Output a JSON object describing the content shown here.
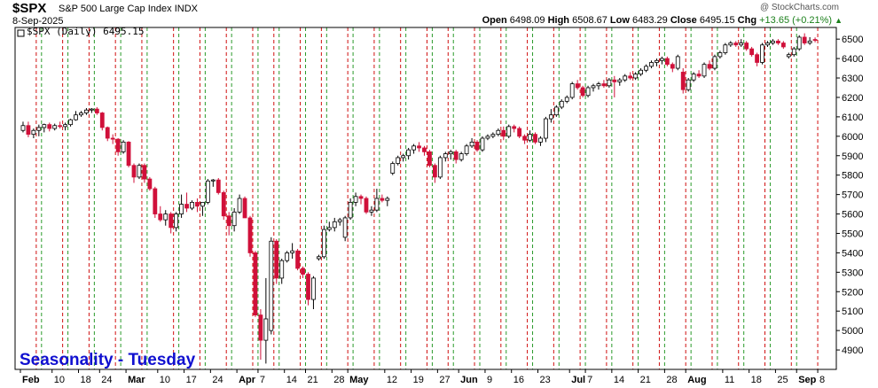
{
  "header": {
    "symbol": "$SPX",
    "name": "S&P 500 Large Cap Index",
    "exchange": "INDX",
    "date": "8-Sep-2025",
    "credit": "@ StockCharts.com",
    "open_label": "Open",
    "open": "6498.09",
    "high_label": "High",
    "high": "6508.67",
    "low_label": "Low",
    "low": "6483.29",
    "close_label": "Close",
    "close": "6495.15",
    "chg_label": "Chg",
    "chg": "+13.65 (+0.21%)"
  },
  "colors": {
    "up": "#000000",
    "down": "#d0103a",
    "green_line": "#2a9a2a",
    "red_line": "#d01010",
    "annotation": "#1010d0"
  },
  "chart_data": {
    "type": "candlestick",
    "legend": "$SPX (Daily) 6495.15",
    "annotation": "Seasonality - Tuesday",
    "ylim": [
      4800,
      6560
    ],
    "y_ticks": [
      4900,
      5000,
      5100,
      5200,
      5300,
      5400,
      5500,
      5600,
      5700,
      5800,
      5900,
      6000,
      6100,
      6200,
      6300,
      6400,
      6500
    ],
    "x_ticks": [
      {
        "label": "Feb",
        "day": 0,
        "month": true
      },
      {
        "label": "10",
        "day": 6
      },
      {
        "label": "18",
        "day": 11
      },
      {
        "label": "24",
        "day": 15
      },
      {
        "label": "Mar",
        "day": 20,
        "month": true
      },
      {
        "label": "10",
        "day": 26
      },
      {
        "label": "17",
        "day": 31
      },
      {
        "label": "24",
        "day": 36
      },
      {
        "label": "Apr",
        "day": 41,
        "month": true
      },
      {
        "label": "7",
        "day": 45
      },
      {
        "label": "14",
        "day": 50
      },
      {
        "label": "21",
        "day": 54
      },
      {
        "label": "28",
        "day": 59
      },
      {
        "label": "May",
        "day": 62,
        "month": true
      },
      {
        "label": "12",
        "day": 69
      },
      {
        "label": "19",
        "day": 74
      },
      {
        "label": "27",
        "day": 79
      },
      {
        "label": "Jun",
        "day": 83,
        "month": true
      },
      {
        "label": "9",
        "day": 88
      },
      {
        "label": "16",
        "day": 93
      },
      {
        "label": "23",
        "day": 98
      },
      {
        "label": "Jul",
        "day": 104,
        "month": true
      },
      {
        "label": "7",
        "day": 107
      },
      {
        "label": "14",
        "day": 112
      },
      {
        "label": "21",
        "day": 117
      },
      {
        "label": "28",
        "day": 122
      },
      {
        "label": "Aug",
        "day": 126,
        "month": true
      },
      {
        "label": "11",
        "day": 133
      },
      {
        "label": "18",
        "day": 138
      },
      {
        "label": "25",
        "day": 143
      },
      {
        "label": "Sep",
        "day": 147,
        "month": true
      },
      {
        "label": "8",
        "day": 151
      }
    ],
    "x_start": 0,
    "x_end": 152,
    "green_lines": [
      4,
      9,
      14,
      19,
      24,
      30,
      35,
      40,
      45,
      49,
      54,
      58,
      63,
      68,
      73,
      78,
      82,
      87,
      92,
      97,
      102,
      107,
      112,
      117,
      122,
      127,
      132,
      137,
      142,
      147
    ],
    "red_lines": [
      3,
      8,
      13,
      18,
      23,
      29,
      34,
      39,
      44,
      48,
      53,
      57,
      62,
      67,
      72,
      77,
      81,
      86,
      91,
      96,
      101,
      106,
      111,
      116,
      121,
      126,
      131,
      136,
      141,
      146,
      151
    ],
    "candles": [
      {
        "o": 6030,
        "h": 6075,
        "l": 6020,
        "c": 6055
      },
      {
        "o": 6055,
        "h": 6075,
        "l": 5995,
        "c": 6010
      },
      {
        "o": 6010,
        "h": 6040,
        "l": 5990,
        "c": 6030
      },
      {
        "o": 6030,
        "h": 6060,
        "l": 6000,
        "c": 6045
      },
      {
        "o": 6045,
        "h": 6065,
        "l": 6020,
        "c": 6060
      },
      {
        "o": 6060,
        "h": 6070,
        "l": 6025,
        "c": 6040
      },
      {
        "o": 6040,
        "h": 6065,
        "l": 6030,
        "c": 6055
      },
      {
        "o": 6055,
        "h": 6075,
        "l": 6040,
        "c": 6050
      },
      {
        "o": 6050,
        "h": 6070,
        "l": 6030,
        "c": 6060
      },
      {
        "o": 6060,
        "h": 6090,
        "l": 6050,
        "c": 6085
      },
      {
        "o": 6085,
        "h": 6130,
        "l": 6080,
        "c": 6110
      },
      {
        "o": 6110,
        "h": 6130,
        "l": 6100,
        "c": 6120
      },
      {
        "o": 6120,
        "h": 6145,
        "l": 6110,
        "c": 6135
      },
      {
        "o": 6135,
        "h": 6145,
        "l": 6120,
        "c": 6140
      },
      {
        "o": 6140,
        "h": 6150,
        "l": 6110,
        "c": 6120
      },
      {
        "o": 6120,
        "h": 6125,
        "l": 6030,
        "c": 6045
      },
      {
        "o": 6045,
        "h": 6050,
        "l": 5975,
        "c": 5990
      },
      {
        "o": 5990,
        "h": 6010,
        "l": 5960,
        "c": 5985
      },
      {
        "o": 5985,
        "h": 5990,
        "l": 5900,
        "c": 5920
      },
      {
        "o": 5920,
        "h": 5980,
        "l": 5910,
        "c": 5970
      },
      {
        "o": 5970,
        "h": 5975,
        "l": 5840,
        "c": 5850
      },
      {
        "o": 5850,
        "h": 5860,
        "l": 5760,
        "c": 5790
      },
      {
        "o": 5790,
        "h": 5860,
        "l": 5780,
        "c": 5850
      },
      {
        "o": 5850,
        "h": 5860,
        "l": 5760,
        "c": 5780
      },
      {
        "o": 5780,
        "h": 5790,
        "l": 5720,
        "c": 5730
      },
      {
        "o": 5730,
        "h": 5740,
        "l": 5580,
        "c": 5600
      },
      {
        "o": 5600,
        "h": 5640,
        "l": 5560,
        "c": 5570
      },
      {
        "o": 5570,
        "h": 5620,
        "l": 5540,
        "c": 5600
      },
      {
        "o": 5600,
        "h": 5610,
        "l": 5500,
        "c": 5530
      },
      {
        "o": 5530,
        "h": 5610,
        "l": 5510,
        "c": 5600
      },
      {
        "o": 5600,
        "h": 5700,
        "l": 5580,
        "c": 5650
      },
      {
        "o": 5650,
        "h": 5710,
        "l": 5610,
        "c": 5630
      },
      {
        "o": 5630,
        "h": 5670,
        "l": 5620,
        "c": 5660
      },
      {
        "o": 5660,
        "h": 5680,
        "l": 5610,
        "c": 5640
      },
      {
        "o": 5640,
        "h": 5660,
        "l": 5590,
        "c": 5660
      },
      {
        "o": 5660,
        "h": 5780,
        "l": 5650,
        "c": 5770
      },
      {
        "o": 5770,
        "h": 5780,
        "l": 5740,
        "c": 5775
      },
      {
        "o": 5775,
        "h": 5785,
        "l": 5700,
        "c": 5710
      },
      {
        "o": 5710,
        "h": 5720,
        "l": 5570,
        "c": 5590
      },
      {
        "o": 5590,
        "h": 5610,
        "l": 5490,
        "c": 5540
      },
      {
        "o": 5540,
        "h": 5630,
        "l": 5510,
        "c": 5610
      },
      {
        "o": 5610,
        "h": 5700,
        "l": 5600,
        "c": 5680
      },
      {
        "o": 5680,
        "h": 5690,
        "l": 5580,
        "c": 5580
      },
      {
        "o": 5580,
        "h": 5590,
        "l": 5380,
        "c": 5400
      },
      {
        "o": 5400,
        "h": 5410,
        "l": 5070,
        "c": 5080
      },
      {
        "o": 5080,
        "h": 5110,
        "l": 4850,
        "c": 4950
      },
      {
        "o": 4950,
        "h": 5270,
        "l": 4830,
        "c": 5060
      },
      {
        "o": 5000,
        "h": 5480,
        "l": 4980,
        "c": 5460
      },
      {
        "o": 5460,
        "h": 5470,
        "l": 5240,
        "c": 5270
      },
      {
        "o": 5270,
        "h": 5370,
        "l": 5240,
        "c": 5360
      },
      {
        "o": 5360,
        "h": 5410,
        "l": 5350,
        "c": 5400
      },
      {
        "o": 5400,
        "h": 5450,
        "l": 5370,
        "c": 5410
      },
      {
        "o": 5410,
        "h": 5420,
        "l": 5310,
        "c": 5320
      },
      {
        "o": 5320,
        "h": 5330,
        "l": 5270,
        "c": 5290
      },
      {
        "o": 5290,
        "h": 5300,
        "l": 5130,
        "c": 5160
      },
      {
        "o": 5160,
        "h": 5280,
        "l": 5110,
        "c": 5270
      },
      {
        "o": 5370,
        "h": 5390,
        "l": 5360,
        "c": 5380
      },
      {
        "o": 5380,
        "h": 5540,
        "l": 5370,
        "c": 5520
      },
      {
        "o": 5520,
        "h": 5560,
        "l": 5510,
        "c": 5530
      },
      {
        "o": 5530,
        "h": 5580,
        "l": 5510,
        "c": 5560
      },
      {
        "o": 5560,
        "h": 5580,
        "l": 5540,
        "c": 5570
      },
      {
        "o": 5480,
        "h": 5590,
        "l": 5460,
        "c": 5580
      },
      {
        "o": 5580,
        "h": 5680,
        "l": 5570,
        "c": 5660
      },
      {
        "o": 5660,
        "h": 5710,
        "l": 5640,
        "c": 5690
      },
      {
        "o": 5690,
        "h": 5700,
        "l": 5650,
        "c": 5680
      },
      {
        "o": 5680,
        "h": 5690,
        "l": 5600,
        "c": 5610
      },
      {
        "o": 5610,
        "h": 5640,
        "l": 5590,
        "c": 5620
      },
      {
        "o": 5620,
        "h": 5730,
        "l": 5610,
        "c": 5680
      },
      {
        "o": 5680,
        "h": 5700,
        "l": 5660,
        "c": 5670
      },
      {
        "o": 5670,
        "h": 5690,
        "l": 5640,
        "c": 5680
      },
      {
        "o": 5810,
        "h": 5870,
        "l": 5800,
        "c": 5860
      },
      {
        "o": 5860,
        "h": 5900,
        "l": 5850,
        "c": 5890
      },
      {
        "o": 5890,
        "h": 5910,
        "l": 5870,
        "c": 5900
      },
      {
        "o": 5900,
        "h": 5940,
        "l": 5880,
        "c": 5930
      },
      {
        "o": 5930,
        "h": 5960,
        "l": 5910,
        "c": 5950
      },
      {
        "o": 5950,
        "h": 5970,
        "l": 5920,
        "c": 5940
      },
      {
        "o": 5940,
        "h": 5950,
        "l": 5900,
        "c": 5920
      },
      {
        "o": 5920,
        "h": 5930,
        "l": 5840,
        "c": 5850
      },
      {
        "o": 5850,
        "h": 5860,
        "l": 5760,
        "c": 5790
      },
      {
        "o": 5790,
        "h": 5900,
        "l": 5780,
        "c": 5890
      },
      {
        "o": 5890,
        "h": 5920,
        "l": 5870,
        "c": 5910
      },
      {
        "o": 5910,
        "h": 5930,
        "l": 5880,
        "c": 5920
      },
      {
        "o": 5920,
        "h": 5930,
        "l": 5860,
        "c": 5880
      },
      {
        "o": 5880,
        "h": 5920,
        "l": 5870,
        "c": 5910
      },
      {
        "o": 5910,
        "h": 5960,
        "l": 5900,
        "c": 5950
      },
      {
        "o": 5950,
        "h": 5990,
        "l": 5940,
        "c": 5970
      },
      {
        "o": 5970,
        "h": 5980,
        "l": 5920,
        "c": 5930
      },
      {
        "o": 5930,
        "h": 6000,
        "l": 5920,
        "c": 5990
      },
      {
        "o": 5990,
        "h": 6010,
        "l": 5980,
        "c": 6000
      },
      {
        "o": 6000,
        "h": 6020,
        "l": 5990,
        "c": 6010
      },
      {
        "o": 6010,
        "h": 6040,
        "l": 6000,
        "c": 6030
      },
      {
        "o": 6030,
        "h": 6050,
        "l": 5980,
        "c": 6000
      },
      {
        "o": 6000,
        "h": 6060,
        "l": 5990,
        "c": 6050
      },
      {
        "o": 6050,
        "h": 6060,
        "l": 6020,
        "c": 6040
      },
      {
        "o": 6040,
        "h": 6050,
        "l": 5990,
        "c": 6000
      },
      {
        "o": 6000,
        "h": 6010,
        "l": 5960,
        "c": 5980
      },
      {
        "o": 5980,
        "h": 6030,
        "l": 5970,
        "c": 6010
      },
      {
        "o": 6010,
        "h": 6020,
        "l": 5960,
        "c": 5970
      },
      {
        "o": 5970,
        "h": 6000,
        "l": 5950,
        "c": 5990
      },
      {
        "o": 5990,
        "h": 6100,
        "l": 5970,
        "c": 6090
      },
      {
        "o": 6090,
        "h": 6140,
        "l": 6070,
        "c": 6110
      },
      {
        "o": 6110,
        "h": 6160,
        "l": 6100,
        "c": 6150
      },
      {
        "o": 6150,
        "h": 6190,
        "l": 6140,
        "c": 6180
      },
      {
        "o": 6180,
        "h": 6210,
        "l": 6170,
        "c": 6200
      },
      {
        "o": 6200,
        "h": 6280,
        "l": 6190,
        "c": 6270
      },
      {
        "o": 6270,
        "h": 6290,
        "l": 6240,
        "c": 6250
      },
      {
        "o": 6250,
        "h": 6260,
        "l": 6200,
        "c": 6210
      },
      {
        "o": 6210,
        "h": 6260,
        "l": 6200,
        "c": 6250
      },
      {
        "o": 6250,
        "h": 6270,
        "l": 6230,
        "c": 6260
      },
      {
        "o": 6260,
        "h": 6280,
        "l": 6240,
        "c": 6270
      },
      {
        "o": 6270,
        "h": 6290,
        "l": 6250,
        "c": 6260
      },
      {
        "o": 6260,
        "h": 6300,
        "l": 6250,
        "c": 6290
      },
      {
        "o": 6290,
        "h": 6310,
        "l": 6200,
        "c": 6280
      },
      {
        "o": 6280,
        "h": 6300,
        "l": 6260,
        "c": 6290
      },
      {
        "o": 6290,
        "h": 6320,
        "l": 6280,
        "c": 6310
      },
      {
        "o": 6310,
        "h": 6330,
        "l": 6290,
        "c": 6300
      },
      {
        "o": 6300,
        "h": 6330,
        "l": 6290,
        "c": 6320
      },
      {
        "o": 6320,
        "h": 6350,
        "l": 6310,
        "c": 6340
      },
      {
        "o": 6340,
        "h": 6370,
        "l": 6330,
        "c": 6360
      },
      {
        "o": 6360,
        "h": 6390,
        "l": 6350,
        "c": 6380
      },
      {
        "o": 6380,
        "h": 6400,
        "l": 6360,
        "c": 6390
      },
      {
        "o": 6390,
        "h": 6410,
        "l": 6370,
        "c": 6400
      },
      {
        "o": 6400,
        "h": 6410,
        "l": 6360,
        "c": 6370
      },
      {
        "o": 6370,
        "h": 6380,
        "l": 6330,
        "c": 6350
      },
      {
        "o": 6350,
        "h": 6420,
        "l": 6340,
        "c": 6410
      },
      {
        "o": 6330,
        "h": 6350,
        "l": 6220,
        "c": 6240
      },
      {
        "o": 6240,
        "h": 6300,
        "l": 6230,
        "c": 6290
      },
      {
        "o": 6290,
        "h": 6330,
        "l": 6280,
        "c": 6320
      },
      {
        "o": 6320,
        "h": 6340,
        "l": 6300,
        "c": 6310
      },
      {
        "o": 6310,
        "h": 6380,
        "l": 6300,
        "c": 6370
      },
      {
        "o": 6370,
        "h": 6390,
        "l": 6340,
        "c": 6350
      },
      {
        "o": 6350,
        "h": 6420,
        "l": 6340,
        "c": 6410
      },
      {
        "o": 6410,
        "h": 6440,
        "l": 6400,
        "c": 6430
      },
      {
        "o": 6430,
        "h": 6480,
        "l": 6420,
        "c": 6470
      },
      {
        "o": 6470,
        "h": 6490,
        "l": 6460,
        "c": 6480
      },
      {
        "o": 6480,
        "h": 6490,
        "l": 6460,
        "c": 6470
      },
      {
        "o": 6470,
        "h": 6500,
        "l": 6460,
        "c": 6480
      },
      {
        "o": 6480,
        "h": 6490,
        "l": 6440,
        "c": 6450
      },
      {
        "o": 6450,
        "h": 6460,
        "l": 6410,
        "c": 6420
      },
      {
        "o": 6420,
        "h": 6430,
        "l": 6360,
        "c": 6380
      },
      {
        "o": 6380,
        "h": 6480,
        "l": 6370,
        "c": 6470
      },
      {
        "o": 6470,
        "h": 6490,
        "l": 6460,
        "c": 6480
      },
      {
        "o": 6480,
        "h": 6500,
        "l": 6470,
        "c": 6490
      },
      {
        "o": 6490,
        "h": 6500,
        "l": 6470,
        "c": 6480
      },
      {
        "o": 6480,
        "h": 6490,
        "l": 6450,
        "c": 6460
      },
      {
        "o": 6410,
        "h": 6430,
        "l": 6400,
        "c": 6420
      },
      {
        "o": 6420,
        "h": 6460,
        "l": 6410,
        "c": 6450
      },
      {
        "o": 6450,
        "h": 6520,
        "l": 6440,
        "c": 6510
      },
      {
        "o": 6510,
        "h": 6530,
        "l": 6470,
        "c": 6480
      },
      {
        "o": 6480,
        "h": 6510,
        "l": 6470,
        "c": 6490
      },
      {
        "o": 6498.09,
        "h": 6508.67,
        "l": 6483.29,
        "c": 6495.15
      }
    ]
  }
}
